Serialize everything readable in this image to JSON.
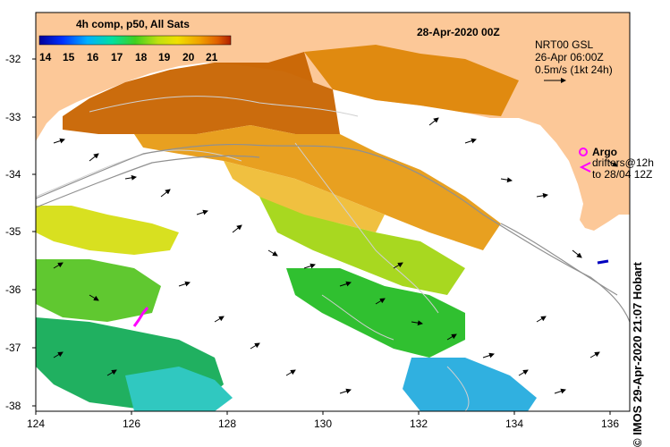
{
  "map": {
    "title": "4h comp, p50, All Sats",
    "date": "28-Apr-2020 00Z",
    "colorbar": {
      "ticks": [
        "14",
        "15",
        "16",
        "17",
        "18",
        "19",
        "20",
        "21"
      ],
      "colors": [
        "#00009a",
        "#0030ff",
        "#00b0ff",
        "#00e0a0",
        "#40d020",
        "#a0e010",
        "#f0e000",
        "#f0a000",
        "#e06000",
        "#b02000"
      ]
    },
    "velocity_legend": {
      "line1": "NRT00 GSL",
      "line2": "26-Apr 06:00Z",
      "line3": "0.5m/s (1kt 24h)"
    },
    "argo_legend": {
      "argo_label": "Argo",
      "drifters_label": "drifters@12h",
      "drifters_to": "to 28/04 12Z",
      "argo_color": "#ff00ff"
    },
    "side_credit": "© IMOS 29-Apr-2020 21:07 Hobart",
    "y_axis": [
      "-32",
      "-33",
      "-34",
      "-35",
      "-36",
      "-37",
      "-38"
    ],
    "x_axis": [
      "124",
      "126",
      "128",
      "130",
      "132",
      "134",
      "136"
    ],
    "land_color": "#fcc898"
  }
}
